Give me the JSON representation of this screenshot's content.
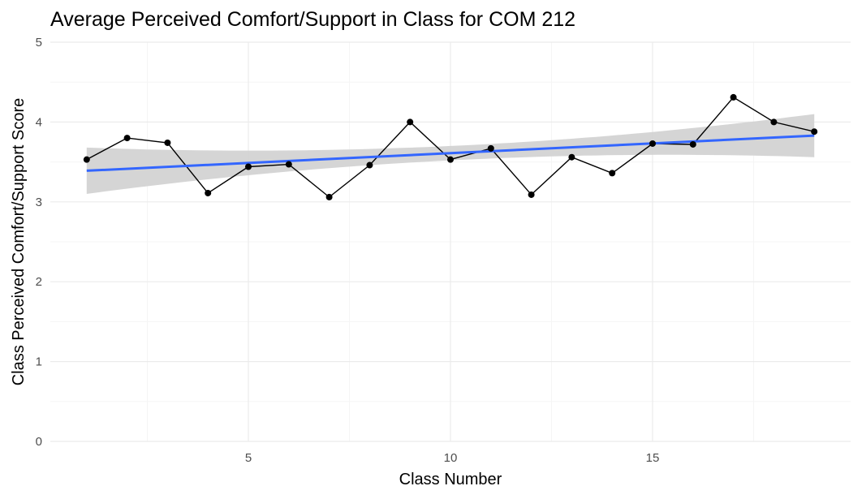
{
  "chart_data": {
    "type": "line",
    "title": "Average Perceived Comfort/Support in Class for COM 212",
    "xlabel": "Class Number",
    "ylabel": "Class Perceived Comfort/Support Score",
    "xlim": [
      0.1,
      19.9
    ],
    "ylim": [
      0,
      5
    ],
    "x_ticks": [
      5,
      10,
      15
    ],
    "y_ticks": [
      0,
      1,
      2,
      3,
      4,
      5
    ],
    "grid": true,
    "series": [
      {
        "x": [
          1,
          2,
          3,
          4,
          5,
          6,
          7,
          8,
          9,
          10,
          11,
          12,
          13,
          14,
          15,
          16,
          17,
          18,
          19
        ],
        "values": [
          3.53,
          3.8,
          3.74,
          3.11,
          3.44,
          3.47,
          3.06,
          3.46,
          4.0,
          3.53,
          3.67,
          3.09,
          3.56,
          3.36,
          3.73,
          3.72,
          4.31,
          4.0,
          3.88
        ]
      }
    ],
    "trend": {
      "method": "linear fit",
      "start": [
        1,
        3.39
      ],
      "end": [
        19,
        3.83
      ],
      "ci_halfwidth_start": 0.29,
      "ci_halfwidth_mid": 0.09,
      "ci_halfwidth_end": 0.27
    },
    "colors": {
      "points": "#000000",
      "line": "#000000",
      "trend": "#3366ff",
      "ci_band": "#d3d3d3",
      "grid_major": "#ebebeb",
      "grid_minor": "#f5f5f5"
    }
  }
}
